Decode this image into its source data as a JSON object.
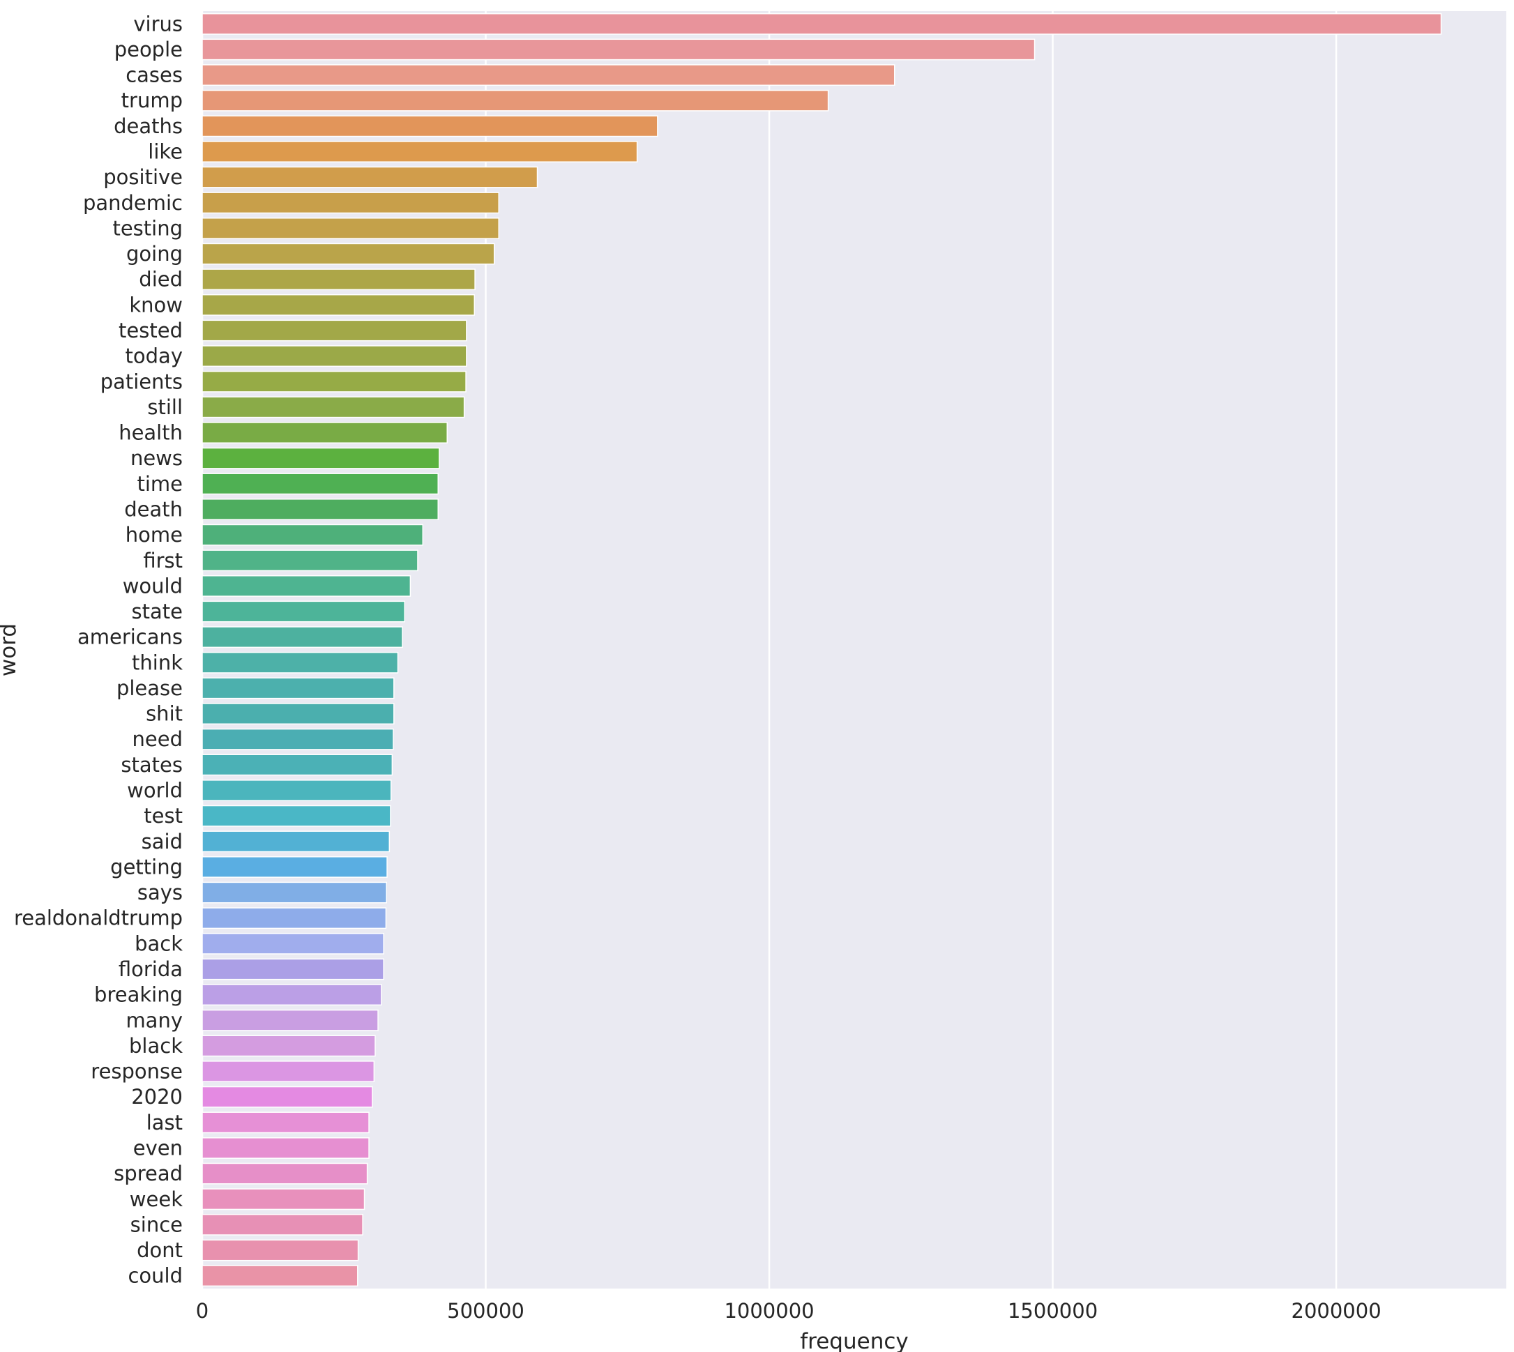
{
  "chart_data": {
    "type": "bar",
    "orientation": "horizontal",
    "title": "",
    "xlabel": "frequency",
    "ylabel": "word",
    "xlim": [
      0,
      2300000
    ],
    "xticks": [
      0,
      500000,
      1000000,
      1500000,
      2000000
    ],
    "xtick_labels": [
      "0",
      "500000",
      "1000000",
      "1500000",
      "2000000"
    ],
    "grid": true,
    "legend": "none",
    "background": "#eaeaf2",
    "categories": [
      "virus",
      "people",
      "cases",
      "trump",
      "deaths",
      "like",
      "positive",
      "pandemic",
      "testing",
      "going",
      "died",
      "know",
      "tested",
      "today",
      "patients",
      "still",
      "health",
      "news",
      "time",
      "death",
      "home",
      "first",
      "would",
      "state",
      "americans",
      "think",
      "please",
      "shit",
      "need",
      "states",
      "world",
      "test",
      "said",
      "getting",
      "says",
      "realdonaldtrump",
      "back",
      "florida",
      "breaking",
      "many",
      "black",
      "response",
      "2020",
      "last",
      "even",
      "spread",
      "week",
      "since",
      "dont",
      "could"
    ],
    "values": [
      2185000,
      1468000,
      1221000,
      1104000,
      803000,
      767000,
      591000,
      523000,
      523000,
      515000,
      481000,
      480000,
      466000,
      466000,
      465000,
      462000,
      432000,
      418000,
      416000,
      416000,
      389000,
      380000,
      367000,
      357000,
      353000,
      345000,
      338000,
      338000,
      337000,
      335000,
      333000,
      332000,
      330000,
      326000,
      325000,
      324000,
      320000,
      320000,
      316000,
      310000,
      305000,
      303000,
      300000,
      294000,
      294000,
      291000,
      286000,
      283000,
      275000,
      274000
    ],
    "colors": [
      "#e8939b",
      "#e8969a",
      "#e89988",
      "#e69776",
      "#e2955a",
      "#dd9a4d",
      "#d19d4b",
      "#c89f4a",
      "#c4a14a",
      "#baa44a",
      "#ada648",
      "#a7a748",
      "#a2a848",
      "#9ba948",
      "#96ab46",
      "#8aab48",
      "#79ab45",
      "#5cb13f",
      "#4fb053",
      "#4ead5f",
      "#4eb07a",
      "#50b388",
      "#4eb491",
      "#4db499",
      "#4db19f",
      "#4db1a8",
      "#4cb0ad",
      "#4bafae",
      "#4baeb3",
      "#4bb1b6",
      "#4bb5bd",
      "#4ab7c6",
      "#52b1d4",
      "#5aaee2",
      "#80aee6",
      "#8eacea",
      "#a0aded",
      "#ab9fe6",
      "#bb9fe6",
      "#c99ee2",
      "#d49ce0",
      "#db96e3",
      "#e48ae2",
      "#e690d6",
      "#e68fd1",
      "#e68fc8",
      "#e890bc",
      "#e790b5",
      "#e891ae",
      "#e993a7"
    ]
  }
}
